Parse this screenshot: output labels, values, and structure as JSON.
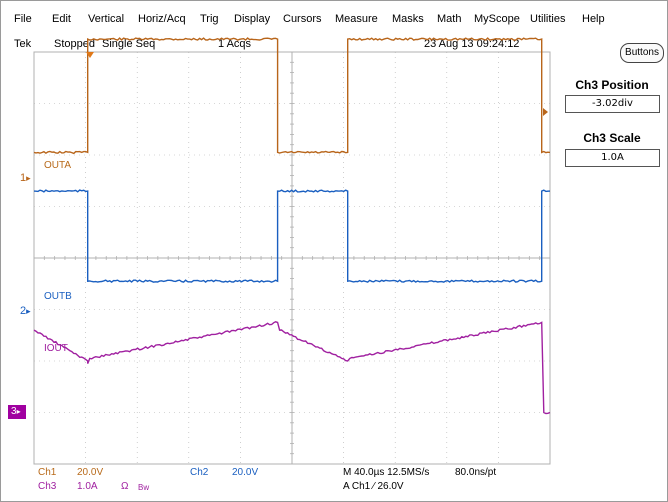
{
  "menu": [
    "File",
    "Edit",
    "Vertical",
    "Horiz/Acq",
    "Trig",
    "Display",
    "Cursors",
    "Measure",
    "Masks",
    "Math",
    "MyScope",
    "Utilities",
    "Help"
  ],
  "status": {
    "brand": "Tek",
    "state": "Stopped",
    "mode": "Single Seq",
    "acqs": "1 Acqs",
    "datetime": "23 Aug 13 09:24:12"
  },
  "side_panel": {
    "buttons_label": "Buttons",
    "position_title": "Ch3 Position",
    "position_value": "-3.02div",
    "scale_title": "Ch3 Scale",
    "scale_value": "1.0A"
  },
  "traces": {
    "ch1_label": "OUTA",
    "ch2_label": "OUTB",
    "ch3_label": "IOUT"
  },
  "markers": {
    "ch1": "1",
    "ch2": "2",
    "ch3": "3"
  },
  "readouts": {
    "ch1_name": "Ch1",
    "ch1_scale": "20.0V",
    "ch2_name": "Ch2",
    "ch2_scale": "20.0V",
    "ch3_name": "Ch3",
    "ch3_scale": "1.0A",
    "ch3_ohm": "Ω",
    "ch3_bw": "Bw",
    "timebase": "M 40.0µs 12.5MS/s",
    "resolution": "80.0ns/pt",
    "trigger": "A  Ch1  ⁄  26.0V"
  },
  "colors": {
    "ch1": "#b8651a",
    "ch2": "#1a5fc0",
    "ch3": "#a020a0",
    "grid": "#b0b0b0",
    "orange_text": "#b86a1a",
    "blue_text": "#1a5fc0",
    "purple_text": "#a020a0"
  },
  "chart_data": {
    "type": "line",
    "title": "",
    "xlabel": "",
    "ylabel": "",
    "grid": true,
    "x_divisions": 10,
    "y_divisions": 8,
    "series": [
      {
        "name": "OUTA",
        "x": [
          0,
          1.3,
          1.3,
          5.9,
          5.9,
          7.6,
          7.6,
          12.3,
          12.3,
          12.5
        ],
        "y": [
          6.05,
          6.05,
          8.25,
          8.25,
          6.05,
          6.05,
          8.25,
          8.25,
          6.05,
          6.05
        ]
      },
      {
        "name": "OUTB",
        "x": [
          0,
          1.3,
          1.3,
          5.9,
          5.9,
          7.6,
          7.6,
          12.3,
          12.3,
          12.5
        ],
        "y": [
          5.3,
          5.3,
          3.55,
          3.55,
          5.3,
          5.3,
          3.55,
          3.55,
          5.3,
          5.3
        ]
      },
      {
        "name": "IOUT",
        "x": [
          0,
          1.3,
          1.3,
          1.35,
          5.9,
          5.95,
          7.6,
          7.65,
          12.3,
          12.35,
          12.5
        ],
        "y": [
          2.6,
          2.0,
          1.95,
          2.05,
          2.75,
          2.6,
          2.0,
          2.05,
          2.75,
          1.0,
          1.0
        ]
      }
    ]
  }
}
